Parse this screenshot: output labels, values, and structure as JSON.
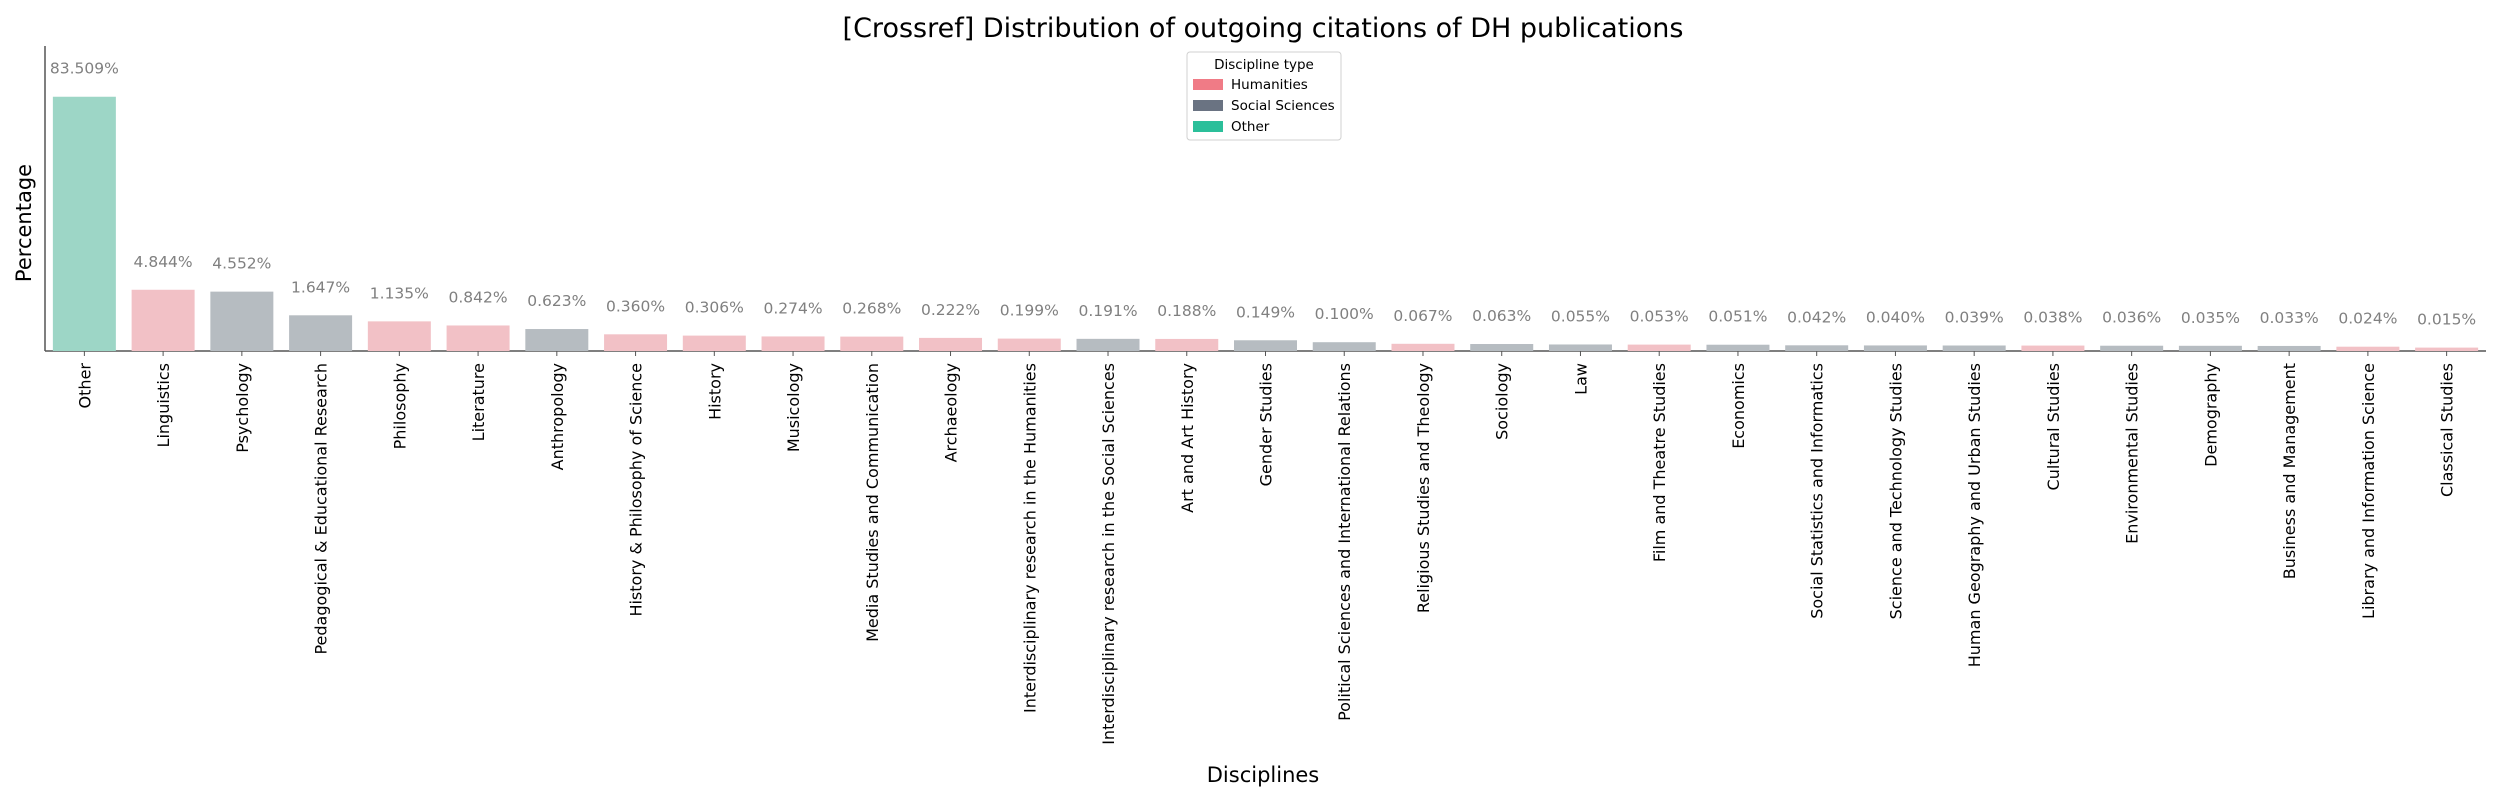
{
  "chart_data": {
    "type": "bar",
    "title": "[Crossref] Distribution of outgoing citations of DH publications",
    "xlabel": "Disciplines",
    "ylabel": "Percentage",
    "legend": {
      "title": "Discipline type",
      "placement": "top-center",
      "entries": [
        {
          "name": "Humanities",
          "color": "#f07b86"
        },
        {
          "name": "Social Sciences",
          "color": "#6a7382"
        },
        {
          "name": "Other",
          "color": "#2bbf9a"
        }
      ]
    },
    "colors": {
      "Humanities": "#f2c1c6",
      "Social Sciences": "#b6bcc1",
      "Other": "#9dd6c6"
    },
    "axis_scale": "sqrt",
    "ylim": [
      0,
      84
    ],
    "grid": false,
    "categories": [
      "Other",
      "Linguistics",
      "Psychology",
      "Pedagogical & Educational Research",
      "Philosophy",
      "Literature",
      "Anthropology",
      "History & Philosophy of Science",
      "History",
      "Musicology",
      "Media Studies and Communication",
      "Archaeology",
      "Interdisciplinary research in the Humanities",
      "Interdisciplinary research in the Social Sciences",
      "Art and Art History",
      "Gender Studies",
      "Political Sciences and International Relations",
      "Religious Studies and Theology",
      "Sociology",
      "Law",
      "Film and Theatre Studies",
      "Economics",
      "Social Statistics and Informatics",
      "Science and Technology Studies",
      "Human Geography and Urban Studies",
      "Cultural Studies",
      "Environmental Studies",
      "Demography",
      "Business and Management",
      "Library and Information Science",
      "Classical Studies"
    ],
    "values": [
      83.509,
      4.844,
      4.552,
      1.647,
      1.135,
      0.842,
      0.623,
      0.36,
      0.306,
      0.274,
      0.268,
      0.222,
      0.199,
      0.191,
      0.188,
      0.149,
      0.1,
      0.067,
      0.063,
      0.055,
      0.053,
      0.051,
      0.042,
      0.04,
      0.039,
      0.038,
      0.036,
      0.035,
      0.033,
      0.024,
      0.015
    ],
    "value_labels": [
      "83.509%",
      "4.844%",
      "4.552%",
      "1.647%",
      "1.135%",
      "0.842%",
      "0.623%",
      "0.360%",
      "0.306%",
      "0.274%",
      "0.268%",
      "0.222%",
      "0.199%",
      "0.191%",
      "0.188%",
      "0.149%",
      "0.100%",
      "0.067%",
      "0.063%",
      "0.055%",
      "0.053%",
      "0.051%",
      "0.042%",
      "0.040%",
      "0.039%",
      "0.038%",
      "0.036%",
      "0.035%",
      "0.033%",
      "0.024%",
      "0.015%"
    ],
    "types": [
      "Other",
      "Humanities",
      "Social Sciences",
      "Social Sciences",
      "Humanities",
      "Humanities",
      "Social Sciences",
      "Humanities",
      "Humanities",
      "Humanities",
      "Humanities",
      "Humanities",
      "Humanities",
      "Social Sciences",
      "Humanities",
      "Social Sciences",
      "Social Sciences",
      "Humanities",
      "Social Sciences",
      "Social Sciences",
      "Humanities",
      "Social Sciences",
      "Social Sciences",
      "Social Sciences",
      "Social Sciences",
      "Humanities",
      "Social Sciences",
      "Social Sciences",
      "Social Sciences",
      "Humanities",
      "Humanities"
    ]
  }
}
